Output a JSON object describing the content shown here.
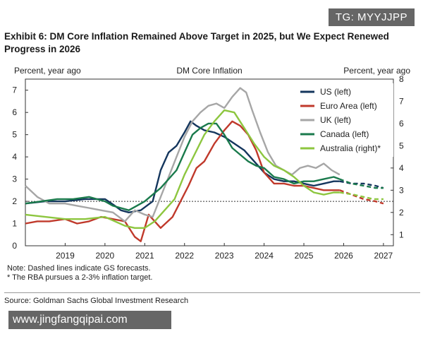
{
  "watermark_top": "TG: MYYJJPP",
  "watermark_bottom": "www.jingfangqipai.com",
  "exhibit_title": "Exhibit 6: DM Core Inflation Remained Above Target in 2025, but We Expect Renewed Progress in 2026",
  "notes": [
    "Note: Dashed lines indicate GS forecasts.",
    "* The RBA pursues a 2-3% inflation target."
  ],
  "source": "Source: Goldman Sachs Global Investment Research",
  "colors": {
    "us": "#14365d",
    "euro": "#c0392b",
    "uk": "#a6a6a6",
    "canada": "#1a7a4c",
    "australia": "#8dc63f"
  },
  "chart_data": {
    "type": "line",
    "title": "DM Core Inflation",
    "left_axis_label": "Percent, year ago",
    "right_axis_label": "Percent, year ago",
    "xlim": [
      2018.0,
      2027.25
    ],
    "ylim_left": [
      0,
      7.5
    ],
    "ylim_right": [
      0.5,
      8
    ],
    "x_ticks": [
      2019,
      2020,
      2021,
      2022,
      2023,
      2024,
      2025,
      2026,
      2027
    ],
    "left_ticks": [
      0,
      1,
      2,
      3,
      4,
      5,
      6,
      7
    ],
    "right_ticks": [
      1,
      2,
      3,
      4,
      5,
      6,
      7,
      8
    ],
    "reference_line": {
      "value_left": 2.0,
      "style": "dotted"
    },
    "legend_position": "top-right",
    "forecast_start": 2025.9,
    "series": [
      {
        "name": "US (left)",
        "key": "us",
        "axis": "left",
        "x": [
          2018.0,
          2018.5,
          2019.0,
          2019.5,
          2020.0,
          2020.25,
          2020.4,
          2020.6,
          2020.9,
          2021.2,
          2021.4,
          2021.6,
          2021.8,
          2022.0,
          2022.15,
          2022.3,
          2022.5,
          2022.75,
          2023.0,
          2023.25,
          2023.5,
          2023.75,
          2024.0,
          2024.25,
          2024.5,
          2024.75,
          2025.0,
          2025.25,
          2025.5,
          2025.75,
          2025.9,
          2026.2,
          2026.5,
          2026.8,
          2027.0
        ],
        "y": [
          1.9,
          2.0,
          2.0,
          2.1,
          2.1,
          1.8,
          1.6,
          1.5,
          1.6,
          2.0,
          3.4,
          4.2,
          4.5,
          5.1,
          5.6,
          5.4,
          5.2,
          5.1,
          4.9,
          4.6,
          4.3,
          3.8,
          3.3,
          3.0,
          2.9,
          2.9,
          2.8,
          2.7,
          2.8,
          2.9,
          2.9,
          2.8,
          2.8,
          2.7,
          2.6
        ]
      },
      {
        "name": "Euro Area (left)",
        "key": "euro",
        "axis": "left",
        "x": [
          2018.0,
          2018.3,
          2018.6,
          2019.0,
          2019.3,
          2019.6,
          2019.9,
          2020.2,
          2020.5,
          2020.75,
          2020.9,
          2021.1,
          2021.4,
          2021.7,
          2021.9,
          2022.1,
          2022.3,
          2022.5,
          2022.75,
          2023.0,
          2023.2,
          2023.4,
          2023.6,
          2023.8,
          2024.0,
          2024.25,
          2024.5,
          2024.75,
          2025.0,
          2025.25,
          2025.5,
          2025.75,
          2025.9,
          2026.2,
          2026.5,
          2026.8,
          2027.0
        ],
        "y": [
          1.0,
          1.1,
          1.1,
          1.2,
          1.0,
          1.1,
          1.3,
          1.2,
          1.1,
          0.4,
          0.2,
          1.4,
          0.8,
          1.3,
          2.0,
          2.7,
          3.5,
          3.8,
          4.6,
          5.2,
          5.6,
          5.4,
          5.0,
          4.3,
          3.3,
          2.8,
          2.8,
          2.7,
          2.7,
          2.6,
          2.5,
          2.5,
          2.5,
          2.3,
          2.1,
          2.0,
          1.9
        ]
      },
      {
        "name": "UK (left)",
        "key": "uk",
        "axis": "left",
        "x": [
          2018.0,
          2018.3,
          2018.6,
          2019.0,
          2019.3,
          2019.6,
          2019.9,
          2020.2,
          2020.5,
          2020.75,
          2021.0,
          2021.2,
          2021.4,
          2021.6,
          2021.8,
          2022.0,
          2022.2,
          2022.4,
          2022.6,
          2022.8,
          2023.0,
          2023.2,
          2023.4,
          2023.55,
          2023.7,
          2023.9,
          2024.1,
          2024.3,
          2024.5,
          2024.7,
          2024.9,
          2025.1,
          2025.3,
          2025.5,
          2025.7,
          2025.9
        ],
        "y": [
          2.7,
          2.2,
          1.9,
          1.9,
          1.8,
          1.7,
          1.6,
          1.5,
          1.1,
          1.6,
          1.4,
          1.3,
          2.2,
          3.1,
          4.0,
          4.9,
          5.6,
          6.0,
          6.3,
          6.4,
          6.2,
          6.7,
          7.1,
          6.9,
          6.1,
          5.1,
          4.2,
          3.6,
          3.4,
          3.2,
          3.5,
          3.6,
          3.5,
          3.7,
          3.4,
          3.2
        ]
      },
      {
        "name": "Canada (left)",
        "key": "canada",
        "axis": "left",
        "x": [
          2018.0,
          2018.4,
          2018.8,
          2019.2,
          2019.6,
          2020.0,
          2020.2,
          2020.4,
          2020.6,
          2020.8,
          2021.0,
          2021.2,
          2021.4,
          2021.6,
          2021.8,
          2022.0,
          2022.2,
          2022.4,
          2022.6,
          2022.8,
          2023.0,
          2023.2,
          2023.4,
          2023.6,
          2023.8,
          2024.0,
          2024.25,
          2024.5,
          2024.75,
          2025.0,
          2025.25,
          2025.5,
          2025.75,
          2025.9,
          2026.2,
          2026.5,
          2026.8,
          2027.0
        ],
        "y": [
          1.9,
          2.0,
          2.1,
          2.1,
          2.2,
          2.0,
          1.8,
          1.7,
          1.6,
          1.8,
          2.0,
          2.3,
          2.6,
          3.0,
          3.4,
          4.2,
          5.0,
          5.3,
          5.5,
          5.5,
          5.0,
          4.4,
          4.1,
          3.8,
          3.6,
          3.5,
          3.1,
          3.0,
          2.8,
          2.9,
          2.9,
          3.0,
          3.1,
          3.0,
          2.8,
          2.7,
          2.6,
          2.6
        ]
      },
      {
        "name": "Australia (right)*",
        "key": "australia",
        "axis": "right",
        "x": [
          2018.0,
          2018.5,
          2019.0,
          2019.5,
          2020.0,
          2020.5,
          2020.75,
          2021.0,
          2021.25,
          2021.5,
          2021.75,
          2022.0,
          2022.25,
          2022.5,
          2022.75,
          2023.0,
          2023.25,
          2023.5,
          2023.75,
          2024.0,
          2024.25,
          2024.5,
          2024.75,
          2025.0,
          2025.25,
          2025.5,
          2025.75,
          2025.9,
          2026.25,
          2026.5,
          2026.75,
          2027.0
        ],
        "y": [
          1.9,
          1.8,
          1.7,
          1.7,
          1.8,
          1.4,
          1.3,
          1.3,
          1.6,
          2.1,
          2.6,
          3.7,
          4.6,
          5.5,
          6.1,
          6.6,
          6.5,
          5.8,
          5.1,
          4.5,
          4.1,
          3.9,
          3.6,
          3.2,
          2.9,
          2.8,
          2.9,
          2.9,
          2.8,
          2.7,
          2.6,
          2.6
        ]
      }
    ]
  }
}
